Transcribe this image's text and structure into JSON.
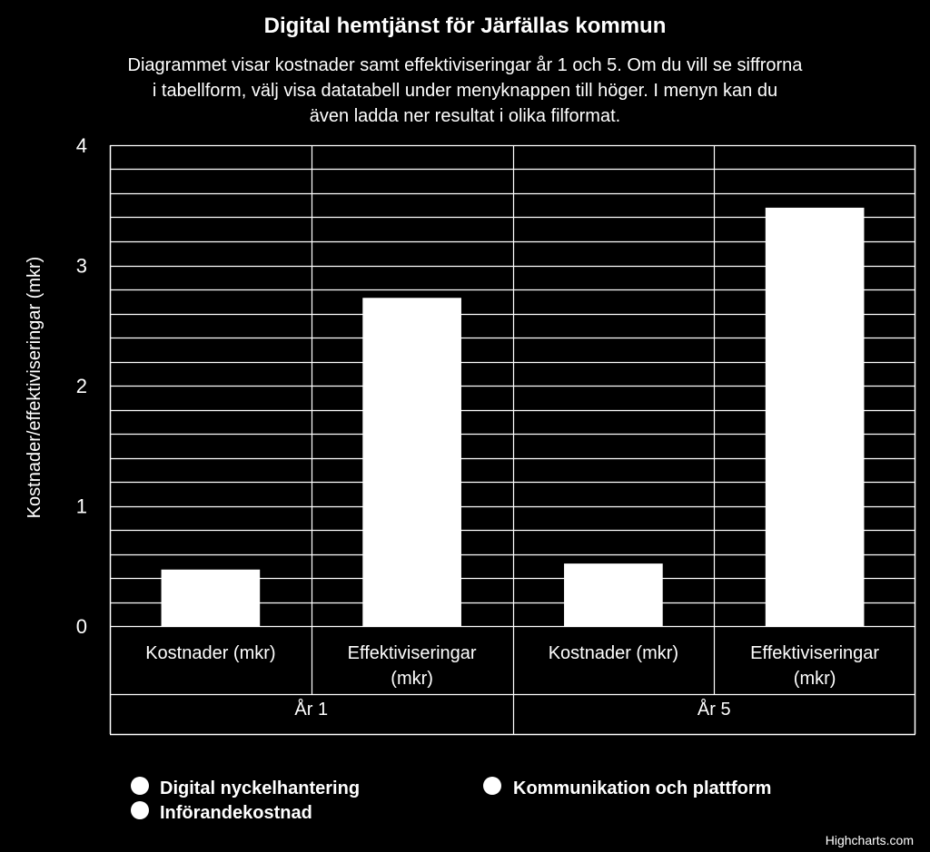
{
  "chart_data": {
    "type": "bar",
    "title": "Digital hemtjänst för Järfällas kommun",
    "subtitle_lines": [
      "Diagrammet visar kostnader samt effektiviseringar år 1 och 5. Om du vill se siffrorna",
      "i tabellform, välj visa datatabell under menyknappen till höger. I menyn kan du",
      "även ladda ner resultat i olika filformat."
    ],
    "ylabel": "Kostnader/effektiviseringar (mkr)",
    "ylim": [
      0,
      4
    ],
    "yticks": [
      0,
      1,
      2,
      3,
      4
    ],
    "minor_step": 0.2,
    "groups": [
      {
        "label": "År 1",
        "categories": [
          {
            "label_lines": [
              "Kostnader (mkr)"
            ],
            "value": 0.47
          },
          {
            "label_lines": [
              "Effektiviseringar",
              "(mkr)"
            ],
            "value": 2.73
          }
        ]
      },
      {
        "label": "År 5",
        "categories": [
          {
            "label_lines": [
              "Kostnader (mkr)"
            ],
            "value": 0.52
          },
          {
            "label_lines": [
              "Effektiviseringar",
              "(mkr)"
            ],
            "value": 3.48
          }
        ]
      }
    ],
    "legend": [
      "Digital nyckelhantering",
      "Kommunikation och plattform",
      "Införandekostnad"
    ],
    "credits": "Highcharts.com"
  },
  "colors": {
    "background": "#000000",
    "foreground": "#ffffff",
    "bar": "#ffffff"
  }
}
